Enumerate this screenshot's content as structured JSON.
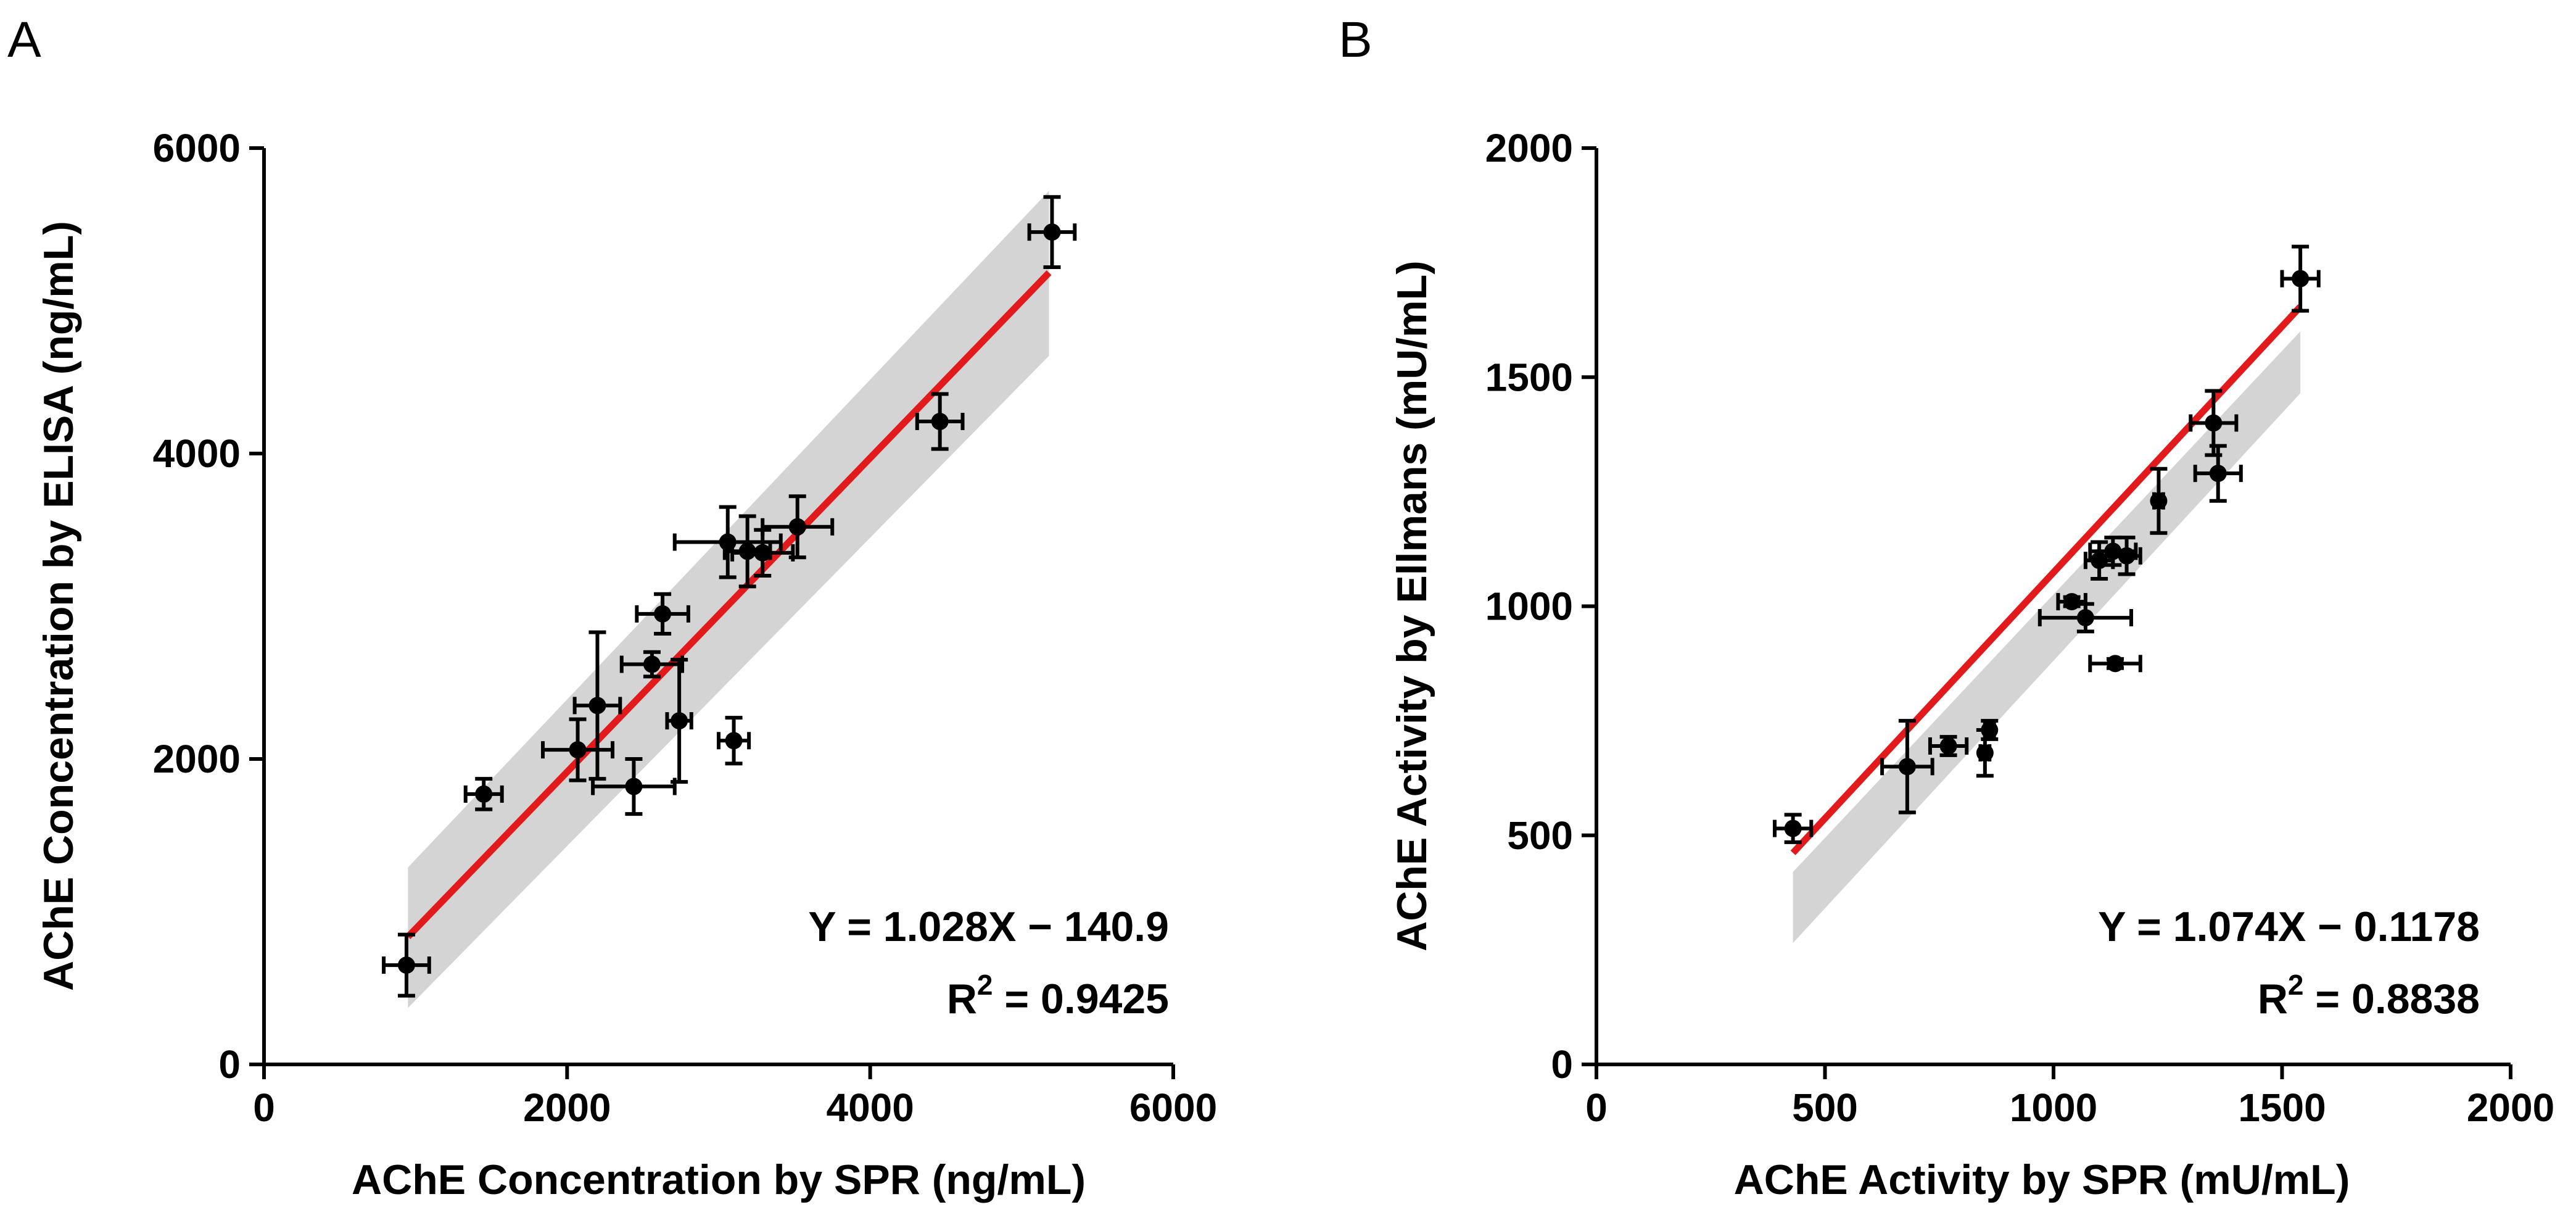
{
  "chart_data": [
    {
      "type": "scatter",
      "panel_label": "A",
      "xlabel": "AChE Concentration by SPR (ng/mL)",
      "ylabel": "AChE Concentration by ELISA (ng/mL)",
      "xlim": [
        0,
        6000
      ],
      "ylim": [
        0,
        6000
      ],
      "xticks": [
        0,
        2000,
        4000,
        6000
      ],
      "yticks": [
        0,
        2000,
        4000,
        6000
      ],
      "equation": "Y = 1.028X − 140.9",
      "r2_prefix": "R",
      "r2_sup": "2",
      "r2_value": " = 0.9425",
      "fit": {
        "slope": 1.028,
        "intercept": -140.9,
        "x_range": [
          950,
          5180
        ],
        "color": "#e31a1c"
      },
      "confidence_band": {
        "color": "#d4d4d4",
        "upper": [
          [
            950,
            1290
          ],
          [
            5180,
            5720
          ]
        ],
        "lower": [
          [
            950,
            370
          ],
          [
            5180,
            4640
          ]
        ]
      },
      "points": [
        {
          "x": 940,
          "y": 650,
          "xerr": 150,
          "yerr": 200
        },
        {
          "x": 1450,
          "y": 1770,
          "xerr": 120,
          "yerr": 100
        },
        {
          "x": 2070,
          "y": 2060,
          "xerr": 230,
          "yerr": 200
        },
        {
          "x": 2200,
          "y": 2350,
          "xerr": 150,
          "yerr": 480
        },
        {
          "x": 2440,
          "y": 1820,
          "xerr": 270,
          "yerr": 180
        },
        {
          "x": 2560,
          "y": 2620,
          "xerr": 200,
          "yerr": 80
        },
        {
          "x": 2630,
          "y": 2950,
          "xerr": 170,
          "yerr": 130
        },
        {
          "x": 2740,
          "y": 2250,
          "xerr": 80,
          "yerr": 400
        },
        {
          "x": 3100,
          "y": 2120,
          "xerr": 100,
          "yerr": 150
        },
        {
          "x": 3060,
          "y": 3420,
          "xerr": 350,
          "yerr": 230
        },
        {
          "x": 3190,
          "y": 3360,
          "xerr": 150,
          "yerr": 230
        },
        {
          "x": 3290,
          "y": 3350,
          "xerr": 200,
          "yerr": 150
        },
        {
          "x": 3520,
          "y": 3520,
          "xerr": 230,
          "yerr": 200
        },
        {
          "x": 4460,
          "y": 4210,
          "xerr": 150,
          "yerr": 180
        },
        {
          "x": 5200,
          "y": 5450,
          "xerr": 150,
          "yerr": 230
        }
      ]
    },
    {
      "type": "scatter",
      "panel_label": "B",
      "xlabel": "AChE Activity by SPR (mU/mL)",
      "ylabel": "AChE Activity by Ellmans (mU/mL)",
      "xlim": [
        0,
        2000
      ],
      "ylim": [
        0,
        2000
      ],
      "xticks": [
        0,
        500,
        1000,
        1500,
        2000
      ],
      "yticks": [
        0,
        500,
        1000,
        1500,
        2000
      ],
      "equation": "Y = 1.074X − 0.1178",
      "r2_prefix": "R",
      "r2_sup": "2",
      "r2_value": " = 0.8838",
      "fit": {
        "slope": 1.074,
        "intercept": -0.1178,
        "x_range": [
          430,
          1540
        ],
        "color": "#e31a1c"
      },
      "confidence_band": {
        "color": "#d4d4d4",
        "upper": [
          [
            430,
            420
          ],
          [
            1540,
            1600
          ]
        ],
        "lower": [
          [
            430,
            265
          ],
          [
            1540,
            1465
          ]
        ]
      },
      "points": [
        {
          "x": 430,
          "y": 515,
          "xerr": 40,
          "yerr": 30
        },
        {
          "x": 680,
          "y": 650,
          "xerr": 55,
          "yerr": 100
        },
        {
          "x": 770,
          "y": 695,
          "xerr": 40,
          "yerr": 20
        },
        {
          "x": 850,
          "y": 680,
          "xerr": 10,
          "yerr": 50
        },
        {
          "x": 860,
          "y": 730,
          "xerr": 10,
          "yerr": 20
        },
        {
          "x": 1040,
          "y": 1010,
          "xerr": 30,
          "yerr": 10
        },
        {
          "x": 1070,
          "y": 975,
          "xerr": 100,
          "yerr": 30
        },
        {
          "x": 1135,
          "y": 875,
          "xerr": 55,
          "yerr": 10
        },
        {
          "x": 1100,
          "y": 1100,
          "xerr": 30,
          "yerr": 40
        },
        {
          "x": 1130,
          "y": 1120,
          "xerr": 50,
          "yerr": 30
        },
        {
          "x": 1160,
          "y": 1110,
          "xerr": 30,
          "yerr": 40
        },
        {
          "x": 1230,
          "y": 1230,
          "xerr": 10,
          "yerr": 70
        },
        {
          "x": 1350,
          "y": 1400,
          "xerr": 50,
          "yerr": 70
        },
        {
          "x": 1360,
          "y": 1290,
          "xerr": 50,
          "yerr": 60
        },
        {
          "x": 1540,
          "y": 1715,
          "xerr": 40,
          "yerr": 70
        }
      ]
    }
  ]
}
